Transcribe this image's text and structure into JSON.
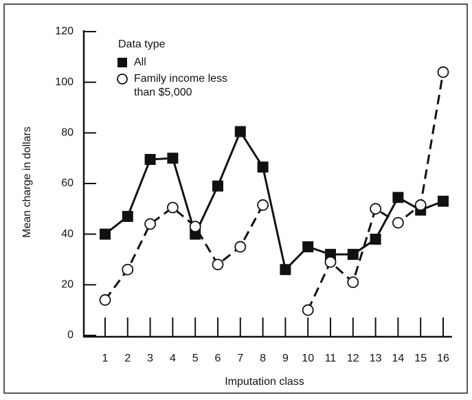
{
  "chart_data": {
    "type": "line",
    "x_label": "Imputation class",
    "y_label": "Mean charge in dollars",
    "legend_title": "Data type",
    "legend": "upper left",
    "categories": [
      "1",
      "2",
      "3",
      "4",
      "5",
      "6",
      "7",
      "8",
      "9",
      "10",
      "11",
      "12",
      "13",
      "14",
      "15",
      "16"
    ],
    "series": [
      {
        "name": "All",
        "color": "#111111",
        "marker": "square",
        "dashed": false,
        "values": [
          40,
          47,
          69.5,
          70,
          40,
          59,
          80.5,
          66.5,
          26,
          35,
          32,
          32,
          38,
          54.5,
          49.5,
          53
        ]
      },
      {
        "name": "Family income less than $5,000",
        "color": "#111111",
        "marker": "open-circle",
        "dashed": true,
        "values": [
          14,
          26,
          44,
          50.5,
          43,
          28,
          35,
          51.5,
          null,
          10,
          29,
          21,
          50,
          44.5,
          51.5,
          104
        ]
      }
    ],
    "ylim": [
      0,
      120
    ],
    "yticks": [
      0,
      20,
      40,
      60,
      80,
      100,
      120
    ]
  }
}
